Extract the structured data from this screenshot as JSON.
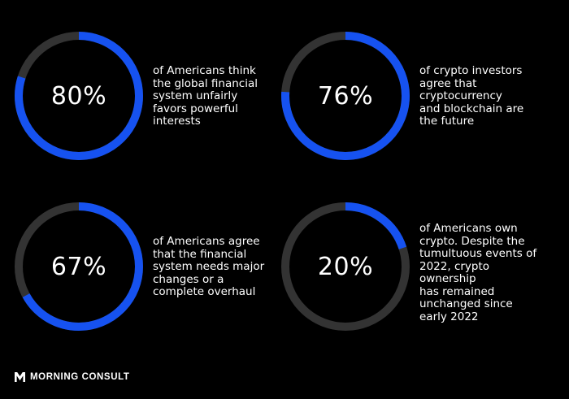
{
  "colors": {
    "ring_fill": "#1652f0",
    "ring_track": "#333333",
    "background": "#000000",
    "text": "#ffffff"
  },
  "chart_data": {
    "type": "donut",
    "items": [
      {
        "label": "80%",
        "value": 80,
        "description": "of Americans think\nthe global financial\nsystem unfairly\nfavors powerful\ninterests"
      },
      {
        "label": "76%",
        "value": 76,
        "description": "of crypto investors\nagree that\ncryptocurrency\nand blockchain are\nthe future"
      },
      {
        "label": "67%",
        "value": 67,
        "description": "of Americans agree\nthat the financial\nsystem needs major\nchanges or a\ncomplete overhaul"
      },
      {
        "label": "20%",
        "value": 20,
        "description": "of Americans own\ncrypto. Despite the\ntumultuous events of\n2022, crypto ownership\nhas remained\nunchanged since\nearly 2022"
      }
    ]
  },
  "brand": {
    "name": "MORNING CONSULT",
    "logo_icon": "morning-consult-logo-icon"
  }
}
